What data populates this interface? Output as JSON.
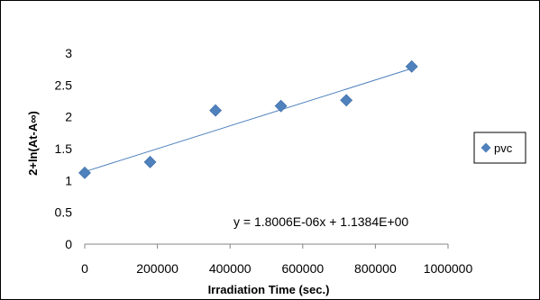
{
  "chart_data": {
    "type": "scatter",
    "title": "",
    "xlabel": "Irradiation Time (sec.)",
    "ylabel": "2+ln(At-A∞)",
    "xlim": [
      0,
      1000000
    ],
    "ylim": [
      0,
      3
    ],
    "x_ticks": [
      0,
      200000,
      400000,
      600000,
      800000,
      1000000
    ],
    "x_tick_labels": [
      "0",
      "200000",
      "400000",
      "600000",
      "800000",
      "1000000"
    ],
    "y_ticks": [
      0,
      0.5,
      1,
      1.5,
      2,
      2.5,
      3
    ],
    "y_tick_labels": [
      "0",
      "0.5",
      "1",
      "1.5",
      "2",
      "2.5",
      "3"
    ],
    "grid": false,
    "legend_position": "right",
    "series": [
      {
        "name": "pvc",
        "marker": "diamond",
        "color": "#4F81BD",
        "x": [
          0,
          180000,
          360000,
          540000,
          720000,
          900000
        ],
        "y": [
          1.12,
          1.29,
          2.1,
          2.17,
          2.26,
          2.79
        ]
      }
    ],
    "trendline": {
      "type": "linear",
      "slope": 1.8006e-06,
      "intercept": 1.1384,
      "x_range": [
        0,
        900000
      ],
      "color": "#4F81BD",
      "equation_label": "y = 1.8006E-06x + 1.1384E+00"
    }
  }
}
